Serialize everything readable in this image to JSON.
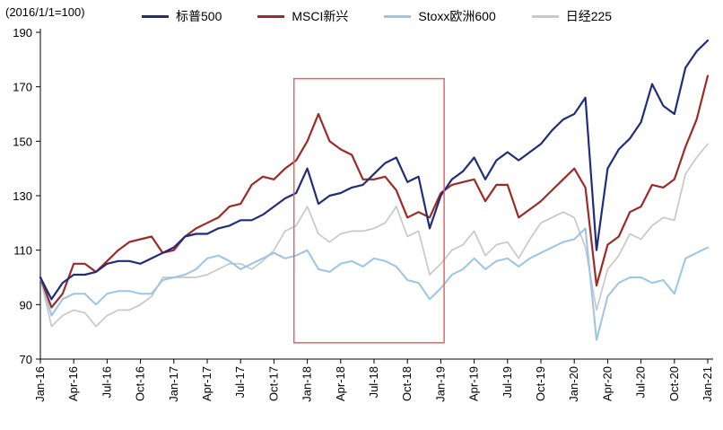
{
  "header": {
    "axis_note": "(2016/1/1=100)"
  },
  "legend": {
    "items": [
      {
        "label": "标普500",
        "color": "#1f2d7b"
      },
      {
        "label": "MSCI新兴",
        "color": "#9e2a25"
      },
      {
        "label": "Stoxx欧洲600",
        "color": "#9dc3e6"
      },
      {
        "label": "日经225",
        "color": "#c8c8c8"
      }
    ]
  },
  "chart_data": {
    "type": "line",
    "title": "",
    "xlabel": "",
    "ylabel": "",
    "grid": false,
    "legend_position": "top",
    "ylim": [
      70,
      190
    ],
    "y_ticks": [
      70,
      90,
      110,
      130,
      150,
      170,
      190
    ],
    "x_months_total": 61,
    "x_tick_labels": [
      "Jan-16",
      "Apr-16",
      "Jul-16",
      "Oct-16",
      "Jan-17",
      "Apr-17",
      "Jul-17",
      "Oct-17",
      "Jan-18",
      "Apr-18",
      "Jul-18",
      "Oct-18",
      "Jan-19",
      "Apr-19",
      "Jul-19",
      "Oct-19",
      "Jan-20",
      "Apr-20",
      "Jul-20",
      "Oct-20",
      "Jan-21"
    ],
    "series": [
      {
        "name": "日经225",
        "key": "nikkei225",
        "color": "#c8c8c8",
        "width": 1.7,
        "values": [
          100,
          82,
          86,
          88,
          87,
          82,
          86,
          88,
          88,
          90,
          93,
          100,
          100,
          100,
          100,
          101,
          103,
          105,
          105,
          103,
          106,
          110,
          117,
          119,
          126,
          116,
          113,
          116,
          117,
          117,
          118,
          120,
          126,
          115,
          117,
          101,
          105,
          110,
          112,
          117,
          108,
          112,
          113,
          107,
          114,
          120,
          122,
          124,
          122,
          111,
          88,
          103,
          108,
          116,
          114,
          119,
          122,
          121,
          138,
          144,
          149
        ]
      },
      {
        "name": "Stoxx欧洲600",
        "key": "stoxx600",
        "color": "#9dc3e6",
        "width": 2,
        "values": [
          100,
          86,
          92,
          94,
          94,
          90,
          94,
          95,
          95,
          94,
          94,
          99,
          100,
          101,
          103,
          107,
          108,
          106,
          103,
          105,
          107,
          109,
          107,
          108,
          110,
          103,
          102,
          105,
          106,
          104,
          107,
          106,
          104,
          99,
          98,
          92,
          96,
          101,
          103,
          107,
          103,
          106,
          107,
          104,
          107,
          109,
          111,
          113,
          114,
          118,
          77,
          93,
          98,
          100,
          100,
          98,
          99,
          94,
          107,
          109,
          111
        ]
      },
      {
        "name": "MSCI新兴",
        "key": "msci-em",
        "color": "#9e2a25",
        "width": 2.2,
        "values": [
          100,
          89,
          94,
          105,
          105,
          102,
          106,
          110,
          113,
          114,
          115,
          109,
          110,
          115,
          118,
          120,
          122,
          126,
          127,
          134,
          137,
          136,
          140,
          143,
          150,
          160,
          150,
          147,
          145,
          136,
          136,
          137,
          132,
          122,
          124,
          122,
          131,
          134,
          135,
          136,
          128,
          134,
          134,
          122,
          125,
          128,
          132,
          136,
          140,
          133,
          97,
          112,
          115,
          124,
          126,
          134,
          133,
          136,
          148,
          158,
          174
        ]
      },
      {
        "name": "标普500",
        "key": "sp500",
        "color": "#1f2d7b",
        "width": 2.2,
        "values": [
          100,
          92,
          98,
          101,
          101,
          102,
          105,
          106,
          106,
          105,
          107,
          109,
          111,
          115,
          116,
          116,
          118,
          119,
          121,
          121,
          123,
          126,
          129,
          131,
          140,
          127,
          130,
          131,
          133,
          134,
          138,
          142,
          144,
          135,
          137,
          118,
          130,
          136,
          139,
          144,
          136,
          143,
          146,
          143,
          146,
          149,
          154,
          158,
          160,
          166,
          110,
          140,
          147,
          151,
          157,
          171,
          163,
          160,
          177,
          183,
          187
        ]
      }
    ],
    "annotation_box": {
      "x0_month": 22.8,
      "x1_month": 36.3,
      "y0_value": 76,
      "y1_value": 173,
      "color": "#e06666"
    }
  }
}
